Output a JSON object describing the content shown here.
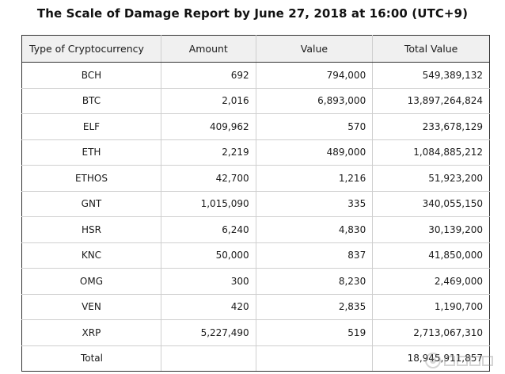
{
  "title": "The Scale of Damage Report by June 27, 2018 at 16:00 (UTC+9)",
  "columns": [
    "Type of Cryptocurrency",
    "Amount",
    "Value",
    "Total  Value"
  ],
  "rows": [
    [
      "BCH",
      "692",
      "794,000",
      "549,389,132"
    ],
    [
      "BTC",
      "2,016",
      "6,893,000",
      "13,897,264,824"
    ],
    [
      "ELF",
      "409,962",
      "570",
      "233,678,129"
    ],
    [
      "ETH",
      "2,219",
      "489,000",
      "1,084,885,212"
    ],
    [
      "ETHOS",
      "42,700",
      "1,216",
      "51,923,200"
    ],
    [
      "GNT",
      "1,015,090",
      "335",
      "340,055,150"
    ],
    [
      "HSR",
      "6,240",
      "4,830",
      "30,139,200"
    ],
    [
      "KNC",
      "50,000",
      "837",
      "41,850,000"
    ],
    [
      "OMG",
      "300",
      "8,230",
      "2,469,000"
    ],
    [
      "VEN",
      "420",
      "2,835",
      "1,190,700"
    ],
    [
      "XRP",
      "5,227,490",
      "519",
      "2,713,067,310"
    ]
  ],
  "total": {
    "label": "Total",
    "amount": "",
    "value": "",
    "total_value": "18,945,911,857"
  },
  "watermark": {
    "text": "金色财经",
    "color": "#9a9a9a"
  }
}
